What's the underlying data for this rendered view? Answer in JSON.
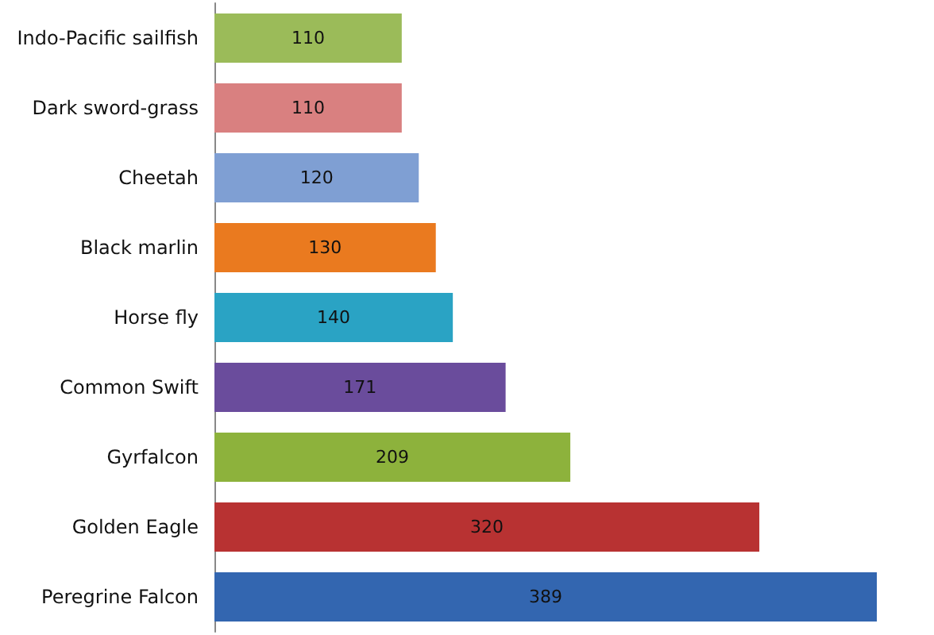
{
  "chart_data": {
    "type": "bar",
    "orientation": "horizontal",
    "categories": [
      "Indo-Pacific sailfish",
      "Dark sword-grass",
      "Cheetah",
      "Black marlin",
      "Horse fly",
      "Common Swift",
      "Gyrfalcon",
      "Golden Eagle",
      "Peregrine Falcon"
    ],
    "values": [
      110,
      110,
      120,
      130,
      140,
      171,
      209,
      320,
      389
    ],
    "colors": [
      "#9bbb59",
      "#d98080",
      "#7f9fd3",
      "#ea7a1f",
      "#2aa3c4",
      "#6a4c9c",
      "#8db23c",
      "#b83232",
      "#3366b0"
    ],
    "data_labels": true,
    "tick_labels": "y"
  }
}
